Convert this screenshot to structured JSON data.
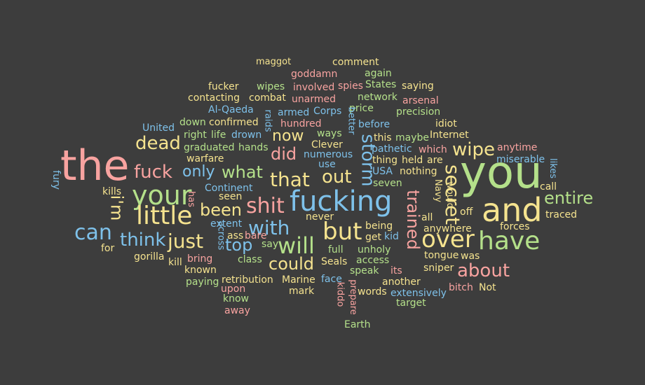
{
  "cloud": {
    "background": "#3d3d3d",
    "palette": {
      "pink": "#f8a3a0",
      "green": "#b4e08a",
      "blue": "#7ec1ea",
      "yellow": "#f5e38f"
    },
    "words": [
      {
        "t": "the",
        "c": "pink"
      },
      {
        "t": "you",
        "c": "green"
      },
      {
        "t": "fucking",
        "c": "blue"
      },
      {
        "t": "and",
        "c": "yellow"
      },
      {
        "t": "over",
        "c": "yellow"
      },
      {
        "t": "have",
        "c": "green"
      },
      {
        "t": "your",
        "c": "green"
      },
      {
        "t": "little",
        "c": "yellow"
      },
      {
        "t": "shit",
        "c": "pink"
      },
      {
        "t": "that",
        "c": "yellow"
      },
      {
        "t": "but",
        "c": "yellow"
      },
      {
        "t": "will",
        "c": "green"
      },
      {
        "t": "can",
        "c": "blue"
      },
      {
        "t": "just",
        "c": "yellow"
      },
      {
        "t": "with",
        "c": "blue"
      },
      {
        "t": "could",
        "c": "yellow"
      },
      {
        "t": "dead",
        "c": "yellow"
      },
      {
        "t": "fuck",
        "c": "pink"
      },
      {
        "t": "think",
        "c": "blue"
      },
      {
        "t": "about",
        "c": "pink"
      },
      {
        "t": "entire",
        "c": "green"
      },
      {
        "t": "wipe",
        "c": "yellow"
      },
      {
        "t": "storm",
        "c": "blue"
      },
      {
        "t": "secret",
        "c": "yellow"
      },
      {
        "t": "trained",
        "c": "pink"
      },
      {
        "t": "out",
        "c": "yellow"
      },
      {
        "t": "did",
        "c": "pink"
      },
      {
        "t": "what",
        "c": "green"
      },
      {
        "t": "now",
        "c": "yellow"
      },
      {
        "t": "been",
        "c": "yellow"
      },
      {
        "t": "top",
        "c": "blue"
      },
      {
        "t": "only",
        "c": "blue"
      },
      {
        "t": "i'm",
        "c": "yellow"
      },
      {
        "t": "maggot",
        "c": "yellow"
      },
      {
        "t": "comment",
        "c": "yellow"
      },
      {
        "t": "goddamn",
        "c": "pink"
      },
      {
        "t": "again",
        "c": "green"
      },
      {
        "t": "fucker",
        "c": "yellow"
      },
      {
        "t": "wipes",
        "c": "green"
      },
      {
        "t": "involved",
        "c": "pink"
      },
      {
        "t": "spies",
        "c": "pink"
      },
      {
        "t": "States",
        "c": "green"
      },
      {
        "t": "saying",
        "c": "yellow"
      },
      {
        "t": "contacting",
        "c": "yellow"
      },
      {
        "t": "combat",
        "c": "yellow"
      },
      {
        "t": "unarmed",
        "c": "pink"
      },
      {
        "t": "network",
        "c": "green"
      },
      {
        "t": "arsenal",
        "c": "pink"
      },
      {
        "t": "Al-Qaeda",
        "c": "blue"
      },
      {
        "t": "armed",
        "c": "blue"
      },
      {
        "t": "Corps",
        "c": "blue"
      },
      {
        "t": "price",
        "c": "green"
      },
      {
        "t": "precision",
        "c": "green"
      },
      {
        "t": "down",
        "c": "green"
      },
      {
        "t": "confirmed",
        "c": "yellow"
      },
      {
        "t": "hundred",
        "c": "pink"
      },
      {
        "t": "before",
        "c": "blue"
      },
      {
        "t": "idiot",
        "c": "yellow"
      },
      {
        "t": "United",
        "c": "blue"
      },
      {
        "t": "right",
        "c": "green"
      },
      {
        "t": "life",
        "c": "green"
      },
      {
        "t": "drown",
        "c": "blue"
      },
      {
        "t": "ways",
        "c": "green"
      },
      {
        "t": "this",
        "c": "yellow"
      },
      {
        "t": "maybe",
        "c": "green"
      },
      {
        "t": "Internet",
        "c": "yellow"
      },
      {
        "t": "graduated",
        "c": "green"
      },
      {
        "t": "hands",
        "c": "green"
      },
      {
        "t": "Clever",
        "c": "yellow"
      },
      {
        "t": "pathetic",
        "c": "blue"
      },
      {
        "t": "which",
        "c": "pink"
      },
      {
        "t": "anytime",
        "c": "pink"
      },
      {
        "t": "warfare",
        "c": "yellow"
      },
      {
        "t": "numerous",
        "c": "blue"
      },
      {
        "t": "thing",
        "c": "yellow"
      },
      {
        "t": "held",
        "c": "yellow"
      },
      {
        "t": "are",
        "c": "yellow"
      },
      {
        "t": "miserable",
        "c": "blue"
      },
      {
        "t": "use",
        "c": "blue"
      },
      {
        "t": "USA",
        "c": "blue"
      },
      {
        "t": "nothing",
        "c": "yellow"
      },
      {
        "t": "seven",
        "c": "green"
      },
      {
        "t": "call",
        "c": "yellow"
      },
      {
        "t": "Continent",
        "c": "blue"
      },
      {
        "t": "kills",
        "c": "yellow"
      },
      {
        "t": "seen",
        "c": "yellow"
      },
      {
        "t": "off",
        "c": "yellow"
      },
      {
        "t": "traced",
        "c": "yellow"
      },
      {
        "t": "extent",
        "c": "blue"
      },
      {
        "t": "never",
        "c": "yellow"
      },
      {
        "t": "being",
        "c": "yellow"
      },
      {
        "t": "all",
        "c": "yellow"
      },
      {
        "t": "anywhere",
        "c": "yellow"
      },
      {
        "t": "forces",
        "c": "yellow"
      },
      {
        "t": "ass",
        "c": "yellow"
      },
      {
        "t": "bare",
        "c": "pink"
      },
      {
        "t": "get",
        "c": "yellow"
      },
      {
        "t": "kid",
        "c": "blue"
      },
      {
        "t": "for",
        "c": "yellow"
      },
      {
        "t": "say",
        "c": "green"
      },
      {
        "t": "full",
        "c": "green"
      },
      {
        "t": "unholy",
        "c": "green"
      },
      {
        "t": "tongue",
        "c": "yellow"
      },
      {
        "t": "was",
        "c": "yellow"
      },
      {
        "t": "gorilla",
        "c": "yellow"
      },
      {
        "t": "bring",
        "c": "pink"
      },
      {
        "t": "class",
        "c": "green"
      },
      {
        "t": "access",
        "c": "green"
      },
      {
        "t": "kill",
        "c": "yellow"
      },
      {
        "t": "Seals",
        "c": "yellow"
      },
      {
        "t": "speak",
        "c": "green"
      },
      {
        "t": "its",
        "c": "pink"
      },
      {
        "t": "sniper",
        "c": "yellow"
      },
      {
        "t": "known",
        "c": "yellow"
      },
      {
        "t": "paying",
        "c": "green"
      },
      {
        "t": "retribution",
        "c": "yellow"
      },
      {
        "t": "Marine",
        "c": "yellow"
      },
      {
        "t": "face",
        "c": "blue"
      },
      {
        "t": "another",
        "c": "yellow"
      },
      {
        "t": "bitch",
        "c": "pink"
      },
      {
        "t": "Not",
        "c": "yellow"
      },
      {
        "t": "upon",
        "c": "pink"
      },
      {
        "t": "mark",
        "c": "yellow"
      },
      {
        "t": "words",
        "c": "yellow"
      },
      {
        "t": "extensively",
        "c": "blue"
      },
      {
        "t": "know",
        "c": "green"
      },
      {
        "t": "target",
        "c": "green"
      },
      {
        "t": "away",
        "c": "pink"
      },
      {
        "t": "Earth",
        "c": "green"
      },
      {
        "t": "fury",
        "c": "blue"
      },
      {
        "t": "has",
        "c": "pink"
      },
      {
        "t": "across",
        "c": "blue"
      },
      {
        "t": "raids",
        "c": "blue"
      },
      {
        "t": "better",
        "c": "blue"
      },
      {
        "t": "Navy",
        "c": "yellow"
      },
      {
        "t": "would",
        "c": "yellow"
      },
      {
        "t": "likes",
        "c": "blue"
      },
      {
        "t": "prepare",
        "c": "pink"
      },
      {
        "t": "kiddo",
        "c": "pink"
      }
    ]
  }
}
